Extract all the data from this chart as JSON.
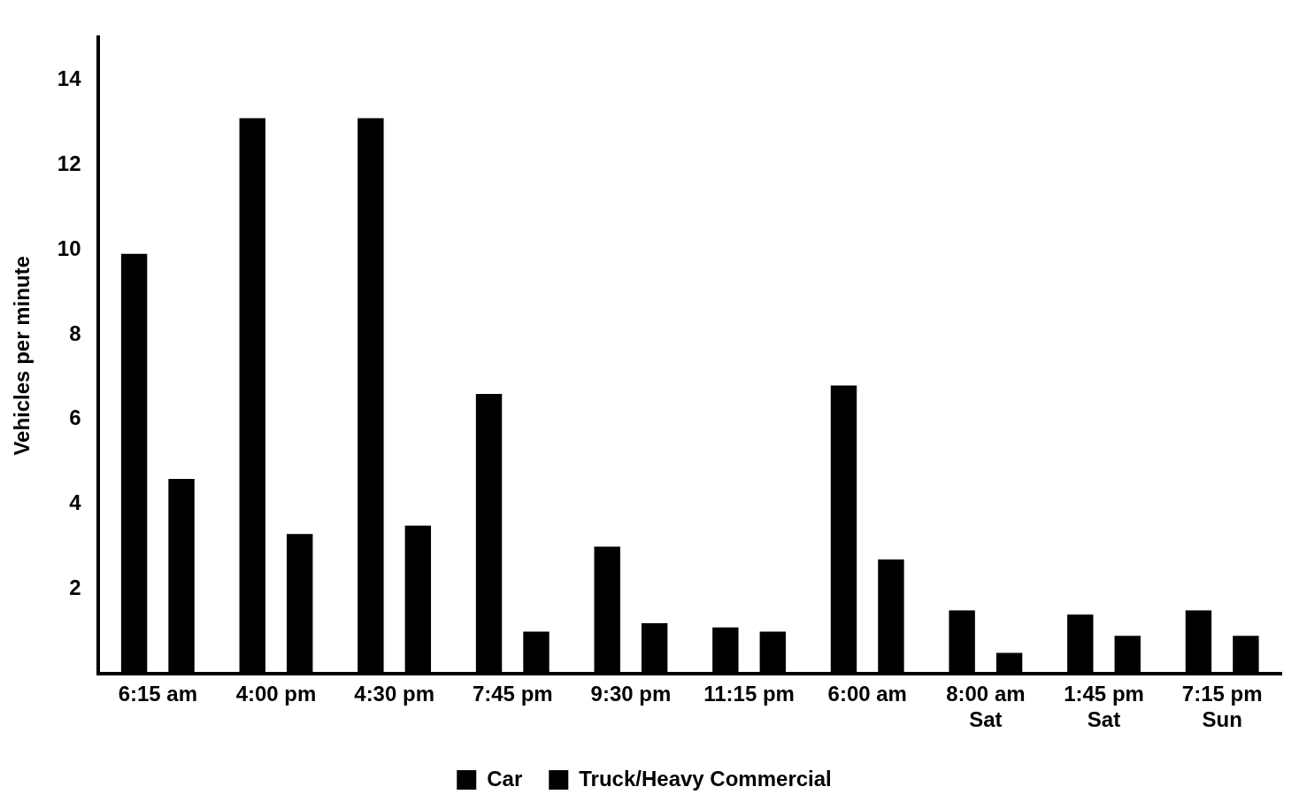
{
  "chart_data": {
    "type": "bar",
    "ylabel": "Vehicles per minute",
    "categories": [
      "6:15 am",
      "4:00 pm",
      "4:30 pm",
      "7:45 pm",
      "9:30 pm",
      "11:15 pm",
      "6:00 am",
      "8:00 am\nSat",
      "1:45 pm\nSat",
      "7:15 pm\nSun"
    ],
    "series": [
      {
        "name": "Car",
        "color": "#000000",
        "values": [
          9.9,
          13.1,
          13.1,
          6.6,
          3.0,
          1.1,
          6.8,
          1.5,
          1.4,
          1.5
        ]
      },
      {
        "name": "Truck/Heavy Commercial",
        "color": "#000000",
        "values": [
          4.6,
          3.3,
          3.5,
          1.0,
          1.2,
          1.0,
          2.7,
          0.5,
          0.9,
          0.9
        ]
      }
    ],
    "ylim": [
      0,
      15
    ],
    "yticks": [
      2,
      4,
      6,
      8,
      10,
      12,
      14
    ],
    "grid": false,
    "legend": "bottom"
  }
}
